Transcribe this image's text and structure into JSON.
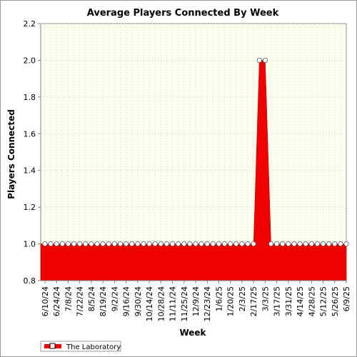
{
  "chart_data": {
    "type": "area",
    "title": "Average Players Connected By Week",
    "xlabel": "Week",
    "ylabel": "Players Connected",
    "ylim": [
      0.8,
      2.2
    ],
    "yticks": [
      "0.8",
      "1.0",
      "1.2",
      "1.4",
      "1.6",
      "1.8",
      "2.0",
      "2.2"
    ],
    "grid": true,
    "legend_position": "bottom-left",
    "colors": {
      "fill": "#f00000",
      "plot_bg": "#fffff0",
      "marker": "#ffffff"
    },
    "tick_labels": [
      "6/10/24",
      "6/24/24",
      "7/8/24",
      "7/22/24",
      "8/5/24",
      "8/19/24",
      "9/2/24",
      "9/16/24",
      "9/30/24",
      "10/14/24",
      "10/28/24",
      "11/11/24",
      "11/25/24",
      "12/9/24",
      "12/23/24",
      "1/6/25",
      "1/20/25",
      "2/3/25",
      "2/17/25",
      "3/3/25",
      "3/17/25",
      "3/31/25",
      "4/14/25",
      "4/28/25",
      "5/12/25",
      "5/26/25",
      "6/9/25"
    ],
    "x": [
      "6/10/24",
      "6/17/24",
      "6/24/24",
      "7/1/24",
      "7/8/24",
      "7/15/24",
      "7/22/24",
      "7/29/24",
      "8/5/24",
      "8/12/24",
      "8/19/24",
      "8/26/24",
      "9/2/24",
      "9/9/24",
      "9/16/24",
      "9/23/24",
      "9/30/24",
      "10/7/24",
      "10/14/24",
      "10/21/24",
      "10/28/24",
      "11/4/24",
      "11/11/24",
      "11/18/24",
      "11/25/24",
      "12/2/24",
      "12/9/24",
      "12/16/24",
      "12/23/24",
      "12/30/24",
      "1/6/25",
      "1/13/25",
      "1/20/25",
      "1/27/25",
      "2/3/25",
      "2/10/25",
      "2/17/25",
      "2/24/25",
      "3/3/25",
      "3/10/25",
      "3/17/25",
      "3/24/25",
      "3/31/25",
      "4/7/25",
      "4/14/25",
      "4/21/25",
      "4/28/25",
      "5/5/25",
      "5/12/25",
      "5/19/25",
      "5/26/25",
      "6/2/25",
      "6/9/25"
    ],
    "series": [
      {
        "name": "The Laboratory",
        "values": [
          1,
          1,
          1,
          1,
          1,
          1,
          1,
          1,
          1,
          1,
          1,
          1,
          1,
          1,
          1,
          1,
          1,
          1,
          1,
          1,
          1,
          1,
          1,
          1,
          1,
          1,
          1,
          1,
          1,
          1,
          1,
          1,
          1,
          1,
          1,
          1,
          1,
          2,
          2,
          1,
          1,
          1,
          1,
          1,
          1,
          1,
          1,
          1,
          1,
          1,
          1,
          1,
          1
        ]
      }
    ]
  }
}
